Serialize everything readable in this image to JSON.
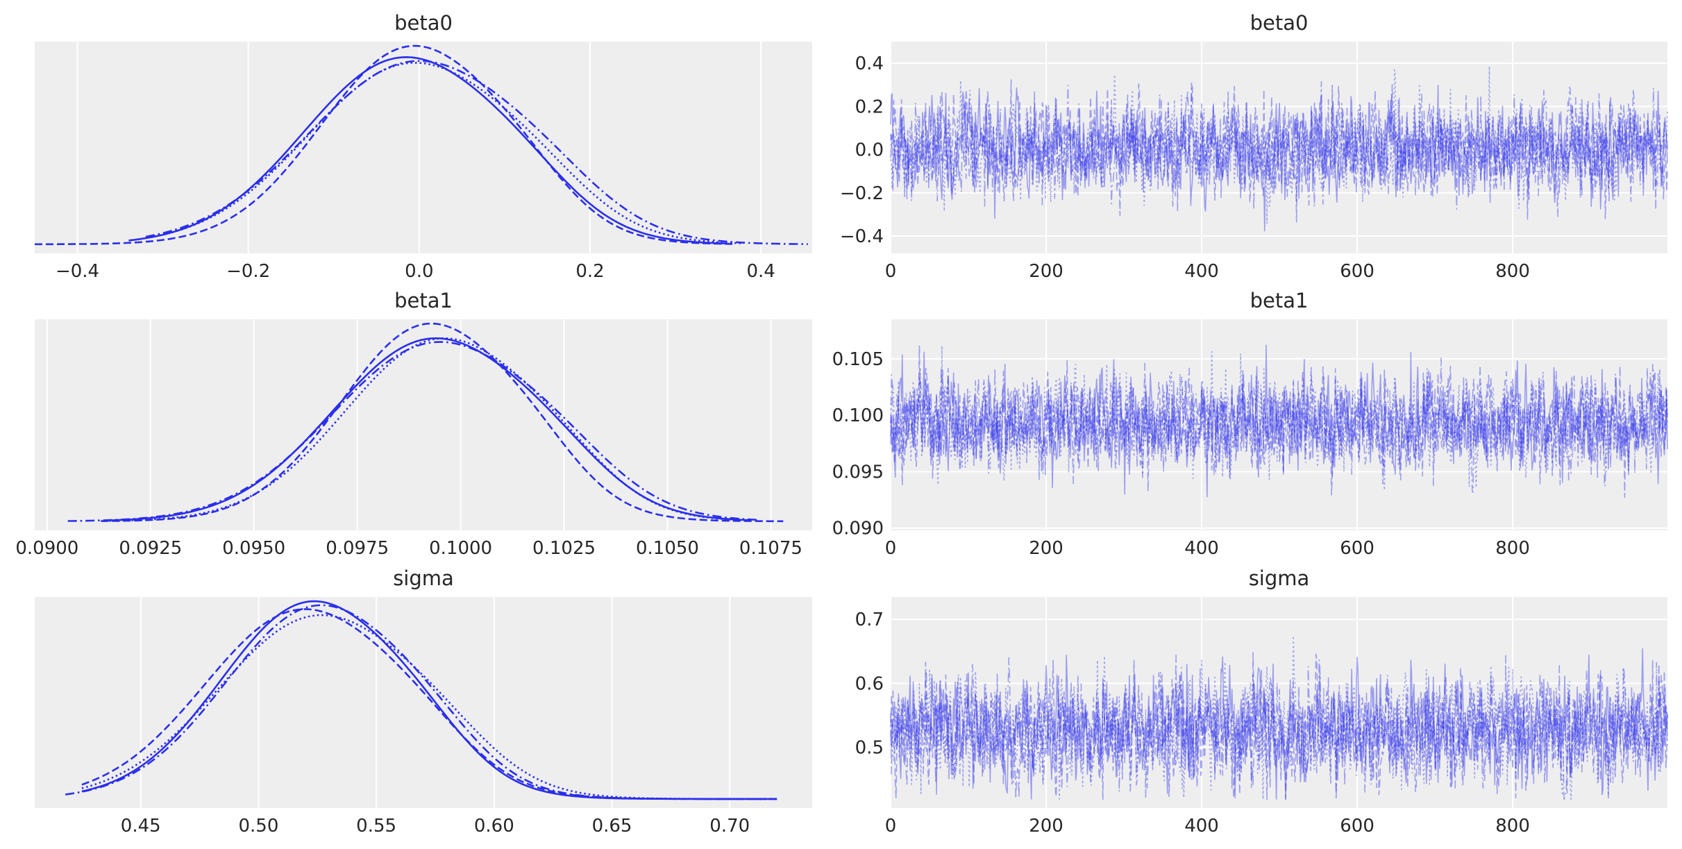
{
  "colors": {
    "series": "#2a2eec",
    "panel": "#eeeeee",
    "grid": "#ffffff",
    "text": "#262626"
  },
  "chart_data": [
    {
      "type": "line",
      "kind": "kde",
      "variable": "beta0",
      "title": "beta0",
      "xlim": [
        -0.45,
        0.46
      ],
      "xticks": [
        -0.4,
        -0.2,
        0.0,
        0.2,
        0.4
      ],
      "xtick_labels": [
        "−0.4",
        "−0.2",
        "0.0",
        "0.2",
        "0.4"
      ],
      "yticks_visible": false,
      "grid": true,
      "chains": [
        {
          "linestyle": "solid",
          "center": -0.02,
          "scale": 0.115,
          "peak": 1.0,
          "range": [
            -0.34,
            0.36
          ]
        },
        {
          "linestyle": "dotted",
          "center": -0.01,
          "scale": 0.12,
          "peak": 0.97,
          "range": [
            -0.32,
            0.38
          ]
        },
        {
          "linestyle": "dashed",
          "center": -0.01,
          "scale": 0.105,
          "peak": 1.06,
          "range": [
            -0.45,
            0.37
          ]
        },
        {
          "linestyle": "dashdot",
          "center": -0.005,
          "scale": 0.125,
          "peak": 0.98,
          "range": [
            -0.32,
            0.455
          ]
        }
      ]
    },
    {
      "type": "line",
      "kind": "trace",
      "variable": "beta0",
      "title": "beta0",
      "xlim": [
        0,
        999
      ],
      "xticks": [
        0,
        200,
        400,
        600,
        800
      ],
      "xtick_labels": [
        "0",
        "200",
        "400",
        "600",
        "800"
      ],
      "ylim": [
        -0.48,
        0.5
      ],
      "yticks": [
        -0.4,
        -0.2,
        0.0,
        0.2,
        0.4
      ],
      "ytick_labels": [
        "−0.4",
        "−0.2",
        "0.0",
        "0.2",
        "0.4"
      ],
      "grid": true,
      "draws_per_chain": 1000,
      "chain_mean": 0.0,
      "chain_sd": 0.11,
      "observed_range": [
        -0.45,
        0.46
      ]
    },
    {
      "type": "line",
      "kind": "kde",
      "variable": "beta1",
      "title": "beta1",
      "xlim": [
        0.0897,
        0.1085
      ],
      "xticks": [
        0.09,
        0.0925,
        0.095,
        0.0975,
        0.1,
        0.1025,
        0.105,
        0.1075
      ],
      "xtick_labels": [
        "0.0900",
        "0.0925",
        "0.0950",
        "0.0975",
        "0.1000",
        "0.1025",
        "0.1050",
        "0.1075"
      ],
      "yticks_visible": false,
      "grid": true,
      "chains": [
        {
          "linestyle": "solid",
          "center": 0.0993,
          "scale": 0.0024,
          "peak": 1.0,
          "range": [
            0.0915,
            0.107
          ]
        },
        {
          "linestyle": "dotted",
          "center": 0.0995,
          "scale": 0.0023,
          "peak": 1.0,
          "range": [
            0.0915,
            0.1068
          ]
        },
        {
          "linestyle": "dashed",
          "center": 0.0992,
          "scale": 0.0021,
          "peak": 1.08,
          "range": [
            0.0913,
            0.1078
          ]
        },
        {
          "linestyle": "dashdot",
          "center": 0.0994,
          "scale": 0.0025,
          "peak": 0.98,
          "range": [
            0.0905,
            0.1072
          ]
        }
      ]
    },
    {
      "type": "line",
      "kind": "trace",
      "variable": "beta1",
      "title": "beta1",
      "xlim": [
        0,
        999
      ],
      "xticks": [
        0,
        200,
        400,
        600,
        800
      ],
      "xtick_labels": [
        "0",
        "200",
        "400",
        "600",
        "800"
      ],
      "ylim": [
        0.0898,
        0.1085
      ],
      "yticks": [
        0.09,
        0.095,
        0.1,
        0.105
      ],
      "ytick_labels": [
        "0.090",
        "0.095",
        "0.100",
        "0.105"
      ],
      "grid": true,
      "draws_per_chain": 1000,
      "chain_mean": 0.0993,
      "chain_sd": 0.0021,
      "observed_range": [
        0.0905,
        0.108
      ]
    },
    {
      "type": "line",
      "kind": "kde",
      "variable": "sigma",
      "title": "sigma",
      "xlim": [
        0.405,
        0.735
      ],
      "xticks": [
        0.45,
        0.5,
        0.55,
        0.6,
        0.65,
        0.7
      ],
      "xtick_labels": [
        "0.45",
        "0.50",
        "0.55",
        "0.60",
        "0.65",
        "0.70"
      ],
      "yticks_visible": false,
      "grid": true,
      "chains": [
        {
          "linestyle": "solid",
          "center": 0.522,
          "scale": 0.038,
          "peak": 1.0,
          "range": [
            0.425,
            0.72
          ]
        },
        {
          "linestyle": "dotted",
          "center": 0.525,
          "scale": 0.042,
          "peak": 0.93,
          "range": [
            0.425,
            0.72
          ]
        },
        {
          "linestyle": "dashed",
          "center": 0.518,
          "scale": 0.041,
          "peak": 0.96,
          "range": [
            0.425,
            0.72
          ]
        },
        {
          "linestyle": "dashdot",
          "center": 0.525,
          "scale": 0.039,
          "peak": 0.98,
          "range": [
            0.418,
            0.72
          ]
        }
      ]
    },
    {
      "type": "line",
      "kind": "trace",
      "variable": "sigma",
      "title": "sigma",
      "xlim": [
        0,
        999
      ],
      "xticks": [
        0,
        200,
        400,
        600,
        800
      ],
      "xtick_labels": [
        "0",
        "200",
        "400",
        "600",
        "800"
      ],
      "ylim": [
        0.405,
        0.735
      ],
      "yticks": [
        0.5,
        0.6,
        0.7
      ],
      "ytick_labels": [
        "0.5",
        "0.6",
        "0.7"
      ],
      "grid": true,
      "draws_per_chain": 1000,
      "chain_mean": 0.528,
      "chain_sd": 0.042,
      "observed_range": [
        0.418,
        0.72
      ]
    }
  ]
}
